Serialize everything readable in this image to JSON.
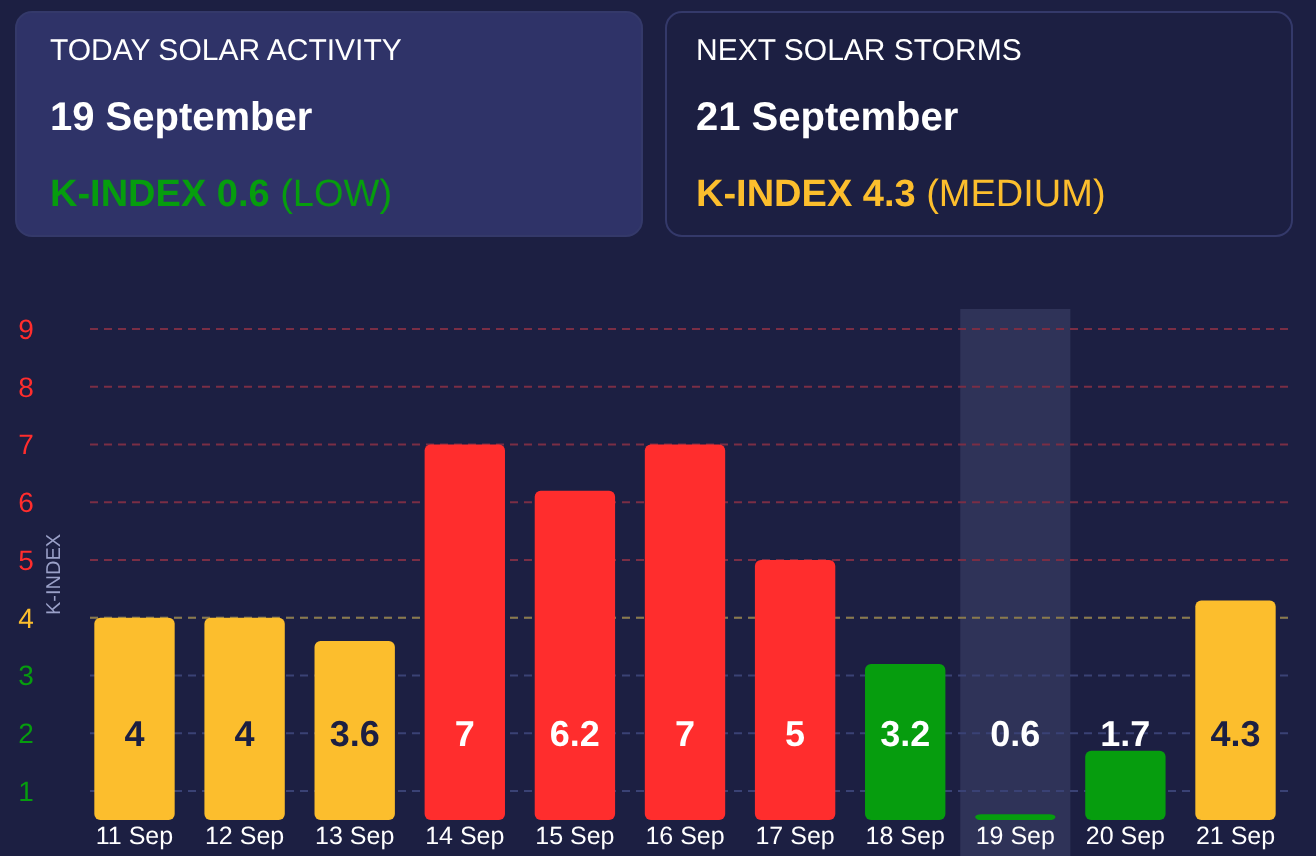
{
  "chart_data": {
    "type": "bar",
    "ylabel": "K-INDEX",
    "categories": [
      "11 Sep",
      "12 Sep",
      "13 Sep",
      "14 Sep",
      "15 Sep",
      "16 Sep",
      "17 Sep",
      "18 Sep",
      "19 Sep",
      "20 Sep",
      "21 Sep"
    ],
    "values": [
      4,
      4,
      3.6,
      7,
      6.2,
      7,
      5,
      3.2,
      0.6,
      1.7,
      4.3
    ],
    "colors": [
      "#fcbe2d",
      "#fcbe2d",
      "#fcbe2d",
      "#ff2d2d",
      "#ff2d2d",
      "#ff2d2d",
      "#ff2d2d",
      "#069d0e",
      "#069d0e",
      "#069d0e",
      "#fcbe2d"
    ],
    "ylim": [
      0.5,
      9
    ],
    "ref_lines": [
      {
        "axis": "y",
        "value": 4,
        "color": "#8a7a4a",
        "line_style": "dashed"
      }
    ],
    "yticks": [
      1,
      2,
      3,
      4,
      5,
      6,
      7,
      8,
      9
    ],
    "grid": "y",
    "data_labels": true,
    "bands": [
      {
        "axis": "x",
        "from": "19 Sep",
        "to": "19 Sep",
        "color": "#2f3358"
      }
    ],
    "annotations": [
      "TODAY SOLAR ACTIVITY",
      "19 September",
      "K-INDEX 0.6",
      "(LOW)",
      "NEXT SOLAR STORMS",
      "21 September",
      "K-INDEX 4.3",
      "(MEDIUM)"
    ]
  }
}
